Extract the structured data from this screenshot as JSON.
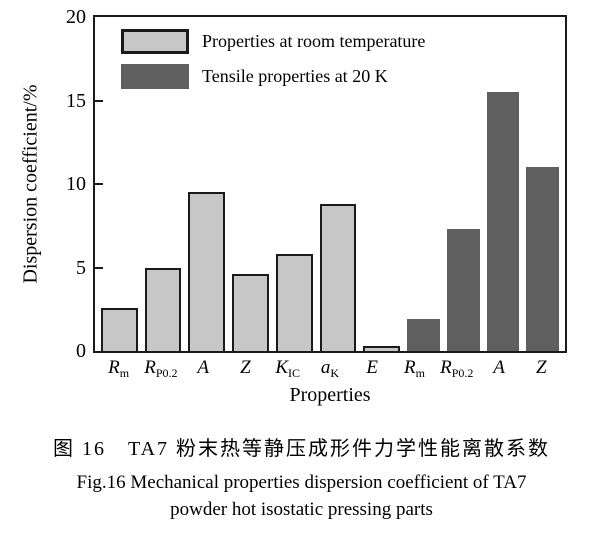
{
  "chart_data": {
    "type": "bar",
    "title": "",
    "ylabel": "Dispersion coefficient/%",
    "xlabel": "Properties",
    "ylim": [
      0,
      20
    ],
    "yticks": [
      0,
      5,
      10,
      15,
      20
    ],
    "grid": false,
    "legend_position": "top-left-inside",
    "legend": [
      {
        "label": "Properties at room temperature",
        "series": "room",
        "color": "#c7c7c7",
        "outlined": true
      },
      {
        "label": "Tensile properties at 20 K",
        "series": "cryo",
        "color": "#5f5f5f",
        "outlined": false
      }
    ],
    "bars": [
      {
        "label": "R",
        "sub": "m",
        "value": 2.6,
        "series": "room"
      },
      {
        "label": "R",
        "sub": "P0.2",
        "value": 5.0,
        "series": "room"
      },
      {
        "label": "A",
        "sub": "",
        "value": 9.5,
        "series": "room"
      },
      {
        "label": "Z",
        "sub": "",
        "value": 4.6,
        "series": "room"
      },
      {
        "label": "K",
        "sub": "IC",
        "value": 5.8,
        "series": "room"
      },
      {
        "label": "a",
        "sub": "K",
        "value": 8.8,
        "series": "room"
      },
      {
        "label": "E",
        "sub": "",
        "value": 0.3,
        "series": "room"
      },
      {
        "label": "R",
        "sub": "m",
        "value": 1.9,
        "series": "cryo"
      },
      {
        "label": "R",
        "sub": "P0.2",
        "value": 7.3,
        "series": "cryo"
      },
      {
        "label": "A",
        "sub": "",
        "value": 15.5,
        "series": "cryo"
      },
      {
        "label": "Z",
        "sub": "",
        "value": 11.0,
        "series": "cryo"
      }
    ]
  },
  "colors": {
    "room_fill": "#c7c7c7",
    "cryo_fill": "#5f5f5f",
    "bar_outline": "#1a1a1a",
    "axis": "#1a1a1a"
  },
  "caption": {
    "line_zh": "图 16　TA7 粉末热等静压成形件力学性能离散系数",
    "line_en1": "Fig.16 Mechanical properties dispersion coefficient of TA7",
    "line_en2": "powder hot isostatic pressing parts"
  }
}
